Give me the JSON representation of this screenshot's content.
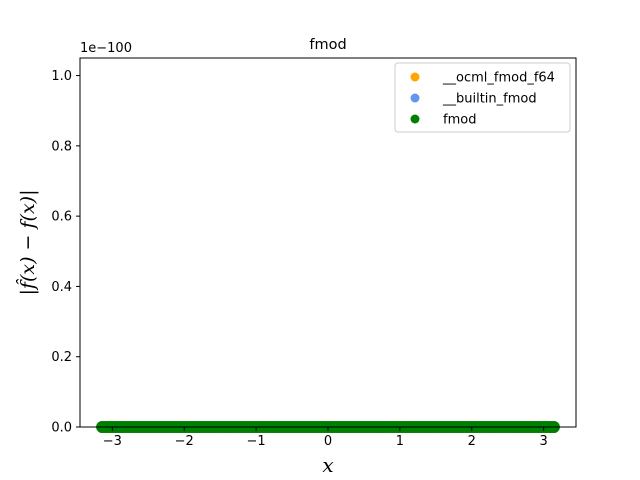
{
  "chart_data": {
    "type": "scatter",
    "title": "fmod",
    "xlabel": "x",
    "ylabel": "|f̂(x) − f(x)|",
    "y_scale_note": "1e−100",
    "xlim": [
      -3.45,
      3.45
    ],
    "ylim": [
      0,
      1.05
    ],
    "x_ticks": [
      -3,
      -2,
      -1,
      0,
      1,
      2,
      3
    ],
    "x_tick_labels": [
      "−3",
      "−2",
      "−1",
      "0",
      "1",
      "2",
      "3"
    ],
    "y_ticks": [
      0.0,
      0.2,
      0.4,
      0.6,
      0.8,
      1.0
    ],
    "y_tick_labels": [
      "0.0",
      "0.2",
      "0.4",
      "0.6",
      "0.8",
      "1.0"
    ],
    "grid": false,
    "legend_position": "top-right",
    "x_range": [
      -3.14159,
      3.14159
    ],
    "series": [
      {
        "name": "__ocml_fmod_f64",
        "color": "#FFA500",
        "y_value": 0
      },
      {
        "name": "__builtin_fmod",
        "color": "#6495ED",
        "y_value": 0
      },
      {
        "name": "fmod",
        "color": "#008000",
        "y_value": 0
      }
    ]
  }
}
